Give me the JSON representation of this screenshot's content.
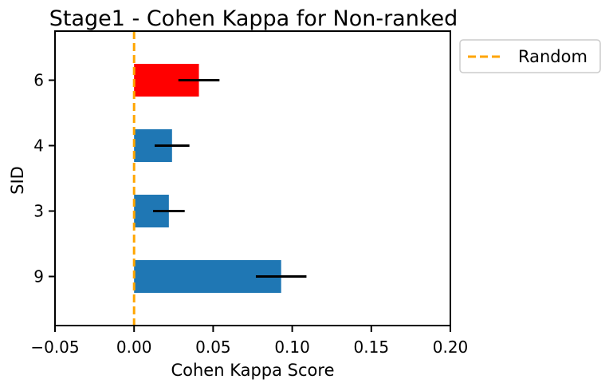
{
  "chart_data": {
    "type": "bar",
    "orientation": "horizontal",
    "title": "Stage1 - Cohen Kappa for Non-ranked",
    "xlabel": "Cohen Kappa Score",
    "ylabel": "SID",
    "xlim": [
      -0.05,
      0.2
    ],
    "xticks": [
      "−0.05",
      "0.00",
      "0.05",
      "0.10",
      "0.15",
      "0.20"
    ],
    "xtick_values": [
      -0.05,
      0.0,
      0.05,
      0.1,
      0.15,
      0.2
    ],
    "categories_top_to_bottom": [
      "6",
      "4",
      "3",
      "9"
    ],
    "values": [
      0.041,
      0.024,
      0.022,
      0.093
    ],
    "errors": [
      0.013,
      0.011,
      0.01,
      0.016
    ],
    "bar_colors": [
      "#ff0000",
      "#1f77b4",
      "#1f77b4",
      "#1f77b4"
    ],
    "reference_line": {
      "label": "Random",
      "x": 0.0,
      "color": "#ffa500",
      "style": "dashed"
    },
    "legend": {
      "entries": [
        "Random"
      ],
      "placement": "outside-top-right"
    },
    "grid": false
  }
}
